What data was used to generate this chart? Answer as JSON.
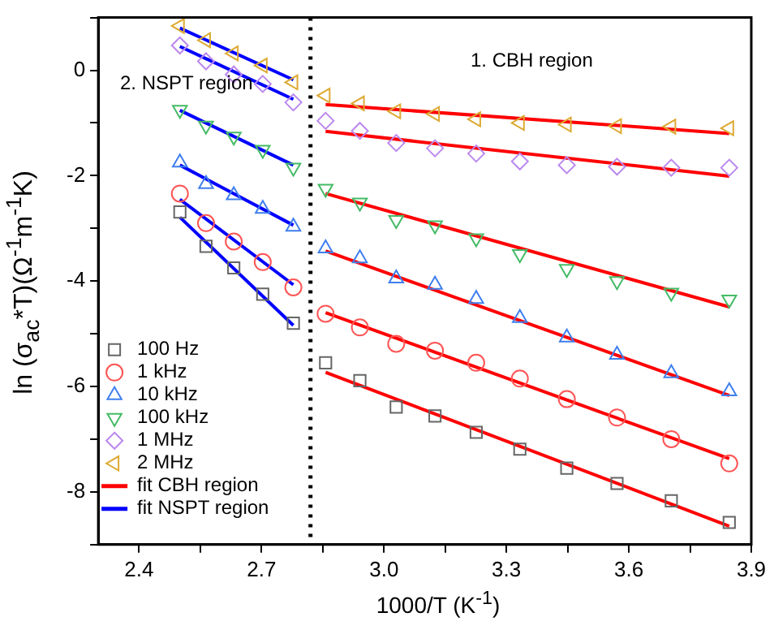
{
  "chart_data": {
    "type": "scatter",
    "xlabel": "1000/T (K$^{-1}$)",
    "ylabel": "ln (σ$_{ac}$*T)(Ω$^{-1}$m$^{-1}$K)",
    "xlim": [
      2.3,
      3.9
    ],
    "ylim": [
      -9,
      1
    ],
    "xticks": [
      2.4,
      {
        "value": 2.55,
        "label": null
      },
      2.7,
      {
        "value": 2.85,
        "label": null
      },
      {
        "value": 3,
        "label": "3.0"
      },
      {
        "value": 3.15,
        "label": null
      },
      3.3,
      {
        "value": 3.45,
        "label": null
      },
      3.6,
      {
        "value": 3.75,
        "label": null
      },
      3.9
    ],
    "yticks": [
      {
        "value": -9,
        "label": null
      },
      -8,
      {
        "value": -7,
        "label": null
      },
      -6,
      {
        "value": -5,
        "label": null
      },
      -4,
      {
        "value": -3,
        "label": null
      },
      -2,
      {
        "value": -1,
        "label": null
      },
      0,
      {
        "value": 1,
        "label": null
      }
    ],
    "grid": false,
    "legend": "bottom left",
    "ref_lines": [
      {
        "axis": "x",
        "value": 2.82,
        "color": "#000000",
        "line_style": "dotted"
      }
    ],
    "annotations": [
      "2. NSPT region",
      "1. CBH region"
    ],
    "series": [
      {
        "name": "100 Hz",
        "type": "scatter",
        "marker": "square",
        "color": "#666666",
        "x": [
          2.5,
          2.564,
          2.632,
          2.703,
          2.778,
          2.857,
          2.941,
          3.03,
          3.125,
          3.226,
          3.333,
          3.448,
          3.571,
          3.704,
          3.846
        ],
        "values": [
          -2.69,
          -3.34,
          -3.75,
          -4.25,
          -4.8,
          -5.55,
          -5.89,
          -6.39,
          -6.56,
          -6.87,
          -7.19,
          -7.55,
          -7.84,
          -8.17,
          -8.58
        ]
      },
      {
        "name": "1 kHz",
        "type": "scatter",
        "marker": "circle",
        "color": "#ff5555",
        "x": [
          2.5,
          2.564,
          2.632,
          2.703,
          2.778,
          2.857,
          2.941,
          3.03,
          3.125,
          3.226,
          3.333,
          3.448,
          3.571,
          3.704,
          3.846
        ],
        "values": [
          -2.34,
          -2.9,
          -3.25,
          -3.64,
          -4.12,
          -4.62,
          -4.88,
          -5.19,
          -5.32,
          -5.55,
          -5.85,
          -6.24,
          -6.59,
          -7.0,
          -7.46
        ]
      },
      {
        "name": "10 kHz",
        "type": "scatter",
        "marker": "triangle",
        "color": "#3f7fee",
        "x": [
          2.5,
          2.564,
          2.632,
          2.703,
          2.778,
          2.857,
          2.941,
          3.03,
          3.125,
          3.226,
          3.333,
          3.448,
          3.571,
          3.704,
          3.846
        ],
        "values": [
          -1.75,
          -2.16,
          -2.37,
          -2.63,
          -2.97,
          -3.38,
          -3.57,
          -3.95,
          -4.07,
          -4.34,
          -4.7,
          -5.07,
          -5.4,
          -5.75,
          -6.09
        ]
      },
      {
        "name": "100 kHz",
        "type": "scatter",
        "marker": "triangle-down",
        "color": "#44bb66",
        "x": [
          2.5,
          2.564,
          2.632,
          2.703,
          2.778,
          2.857,
          2.941,
          3.03,
          3.125,
          3.226,
          3.333,
          3.448,
          3.571,
          3.704,
          3.846
        ],
        "values": [
          -0.75,
          -1.05,
          -1.26,
          -1.51,
          -1.85,
          -2.25,
          -2.51,
          -2.84,
          -2.94,
          -3.19,
          -3.49,
          -3.77,
          -4.0,
          -4.22,
          -4.35
        ]
      },
      {
        "name": "1 MHz",
        "type": "scatter",
        "marker": "diamond",
        "color": "#bb88ee",
        "x": [
          2.5,
          2.564,
          2.632,
          2.703,
          2.778,
          2.857,
          2.941,
          3.03,
          3.125,
          3.226,
          3.333,
          3.448,
          3.571,
          3.704,
          3.846
        ],
        "values": [
          0.47,
          0.17,
          -0.08,
          -0.26,
          -0.61,
          -0.96,
          -1.15,
          -1.38,
          -1.48,
          -1.58,
          -1.73,
          -1.8,
          -1.83,
          -1.85,
          -1.85
        ]
      },
      {
        "name": "2 MHz",
        "type": "scatter",
        "marker": "triangle-left",
        "color": "#ddaa33",
        "x": [
          2.5,
          2.564,
          2.632,
          2.703,
          2.778,
          2.857,
          2.941,
          3.03,
          3.125,
          3.226,
          3.333,
          3.448,
          3.571,
          3.704,
          3.846
        ],
        "values": [
          0.84,
          0.57,
          0.32,
          0.09,
          -0.23,
          -0.48,
          -0.63,
          -0.78,
          -0.83,
          -0.93,
          -1.0,
          -1.03,
          -1.06,
          -1.07,
          -1.1
        ]
      },
      {
        "name": "fit CBH region",
        "type": "line",
        "color": "#ff0000",
        "x": [
          2.857,
          3.846
        ],
        "values": [
          -5.73,
          -8.65
        ]
      },
      {
        "type": "line",
        "color": "#ff0000",
        "x": [
          2.857,
          3.846
        ],
        "values": [
          -4.6,
          -7.37
        ]
      },
      {
        "type": "line",
        "color": "#ff0000",
        "x": [
          2.857,
          3.846
        ],
        "values": [
          -3.43,
          -6.17
        ]
      },
      {
        "type": "line",
        "color": "#ff0000",
        "x": [
          2.857,
          3.846
        ],
        "values": [
          -2.34,
          -4.49
        ]
      },
      {
        "type": "line",
        "color": "#ff0000",
        "x": [
          2.857,
          3.846
        ],
        "values": [
          -1.16,
          -2.01
        ]
      },
      {
        "type": "line",
        "color": "#ff0000",
        "x": [
          2.857,
          3.846
        ],
        "values": [
          -0.65,
          -1.2
        ]
      },
      {
        "name": "fit NSPT region",
        "type": "line",
        "color": "#0000ff",
        "x": [
          2.5,
          2.778
        ],
        "values": [
          -2.79,
          -4.84
        ]
      },
      {
        "type": "line",
        "color": "#0000ff",
        "x": [
          2.5,
          2.778
        ],
        "values": [
          -2.45,
          -4.07
        ]
      },
      {
        "type": "line",
        "color": "#0000ff",
        "x": [
          2.5,
          2.778
        ],
        "values": [
          -1.8,
          -2.94
        ]
      },
      {
        "type": "line",
        "color": "#0000ff",
        "x": [
          2.5,
          2.778
        ],
        "values": [
          -0.76,
          -1.8
        ]
      },
      {
        "type": "line",
        "color": "#0000ff",
        "x": [
          2.5,
          2.778
        ],
        "values": [
          0.45,
          -0.55
        ]
      },
      {
        "type": "line",
        "color": "#0000ff",
        "x": [
          2.5,
          2.778
        ],
        "values": [
          0.8,
          -0.18
        ]
      }
    ]
  }
}
